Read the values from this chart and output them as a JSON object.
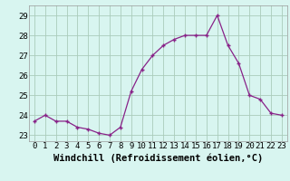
{
  "hours": [
    0,
    1,
    2,
    3,
    4,
    5,
    6,
    7,
    8,
    9,
    10,
    11,
    12,
    13,
    14,
    15,
    16,
    17,
    18,
    19,
    20,
    21,
    22,
    23
  ],
  "values": [
    23.7,
    24.0,
    23.7,
    23.7,
    23.4,
    23.3,
    23.1,
    23.0,
    23.4,
    25.2,
    26.3,
    27.0,
    27.5,
    27.8,
    28.0,
    28.0,
    28.0,
    29.0,
    27.5,
    26.6,
    25.0,
    24.8,
    24.1,
    24.0
  ],
  "line_color": "#882288",
  "marker": "+",
  "bg_color": "#d8f5f0",
  "grid_color": "#aaccbb",
  "xlabel": "Windchill (Refroidissement éolien,°C)",
  "ylim_min": 22.7,
  "ylim_max": 29.5,
  "yticks": [
    23,
    24,
    25,
    26,
    27,
    28,
    29
  ],
  "xticks": [
    0,
    1,
    2,
    3,
    4,
    5,
    6,
    7,
    8,
    9,
    10,
    11,
    12,
    13,
    14,
    15,
    16,
    17,
    18,
    19,
    20,
    21,
    22,
    23
  ],
  "tick_fontsize": 6.5,
  "xlabel_fontsize": 7.5
}
